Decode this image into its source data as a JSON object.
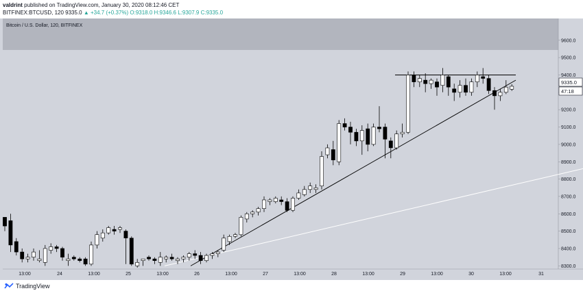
{
  "header": {
    "author": "valdrint",
    "published_text": "published on TradingView.com, January 30, 2020 08:12:46 CET",
    "symbol": "BITFINEX:BTCUSD, 120",
    "last": "9335.0",
    "change": "▲ +34.7 (+0.37%)",
    "ohlc": "O:9318.0 H:9346.6 L:9307.9 C:9335.0"
  },
  "chart_title": "Bitcoin / U.S. Dollar, 120, BITFINEX",
  "footer": {
    "brand": "TradingView"
  },
  "price_badge": "9335.0",
  "timer_badge": "47:18",
  "colors": {
    "background": "#d1d4dc",
    "band": "#b2b5be",
    "candle_up": "#ffffff",
    "candle_down": "#000000"
  },
  "chart_data": {
    "type": "candlestick",
    "title": "Bitcoin / U.S. Dollar, 120, BITFINEX",
    "x_ticks": [
      "13:00",
      "24",
      "13:00",
      "25",
      "13:00",
      "26",
      "13:00",
      "27",
      "13:00",
      "28",
      "13:00",
      "29",
      "13:00",
      "30",
      "13:00",
      "31"
    ],
    "y_ticks": [
      8300,
      8400,
      8500,
      8600,
      8700,
      8800,
      8900,
      9000,
      9100,
      9200,
      9300,
      9400,
      9500,
      9600
    ],
    "y_range": [
      8260,
      9720
    ],
    "resistance_level": 9400,
    "candles": [
      [
        8580,
        8580,
        8500,
        8530
      ],
      [
        8560,
        8600,
        8380,
        8420
      ],
      [
        8440,
        8460,
        8360,
        8380
      ],
      [
        8380,
        8400,
        8320,
        8340
      ],
      [
        8340,
        8370,
        8320,
        8350
      ],
      [
        8350,
        8400,
        8330,
        8380
      ],
      [
        8330,
        8390,
        8320,
        8340
      ],
      [
        8320,
        8420,
        8300,
        8400
      ],
      [
        8390,
        8430,
        8370,
        8410
      ],
      [
        8410,
        8420,
        8380,
        8400
      ],
      [
        8400,
        8410,
        8330,
        8350
      ],
      [
        8330,
        8370,
        8300,
        8340
      ],
      [
        8350,
        8360,
        8330,
        8340
      ],
      [
        8340,
        8350,
        8320,
        8330
      ],
      [
        8340,
        8350,
        8300,
        8310
      ],
      [
        8310,
        8440,
        8300,
        8420
      ],
      [
        8420,
        8500,
        8400,
        8480
      ],
      [
        8460,
        8510,
        8440,
        8490
      ],
      [
        8490,
        8530,
        8480,
        8520
      ],
      [
        8510,
        8530,
        8480,
        8500
      ],
      [
        8510,
        8530,
        8490,
        8520
      ],
      [
        8500,
        8510,
        8310,
        8460
      ],
      [
        8460,
        8470,
        8300,
        8310
      ],
      [
        8300,
        8340,
        8290,
        8320
      ],
      [
        8330,
        8340,
        8300,
        8340
      ],
      [
        8350,
        8360,
        8330,
        8340
      ],
      [
        8340,
        8350,
        8310,
        8330
      ],
      [
        8320,
        8380,
        8300,
        8350
      ],
      [
        8340,
        8360,
        8320,
        8350
      ],
      [
        8350,
        8370,
        8330,
        8340
      ],
      [
        8330,
        8350,
        8310,
        8340
      ],
      [
        8340,
        8360,
        8320,
        8350
      ],
      [
        8350,
        8380,
        8330,
        8370
      ],
      [
        8370,
        8390,
        8340,
        8360
      ],
      [
        8360,
        8380,
        8310,
        8330
      ],
      [
        8330,
        8370,
        8320,
        8360
      ],
      [
        8360,
        8380,
        8340,
        8370
      ],
      [
        8370,
        8390,
        8350,
        8380
      ],
      [
        8390,
        8480,
        8380,
        8460
      ],
      [
        8440,
        8480,
        8420,
        8470
      ],
      [
        8470,
        8490,
        8460,
        8480
      ],
      [
        8480,
        8590,
        8470,
        8580
      ],
      [
        8570,
        8610,
        8550,
        8600
      ],
      [
        8600,
        8620,
        8580,
        8610
      ],
      [
        8610,
        8640,
        8590,
        8630
      ],
      [
        8630,
        8700,
        8610,
        8680
      ],
      [
        8670,
        8690,
        8650,
        8680
      ],
      [
        8670,
        8700,
        8660,
        8690
      ],
      [
        8680,
        8700,
        8650,
        8670
      ],
      [
        8670,
        8690,
        8610,
        8620
      ],
      [
        8620,
        8700,
        8610,
        8690
      ],
      [
        8690,
        8740,
        8680,
        8720
      ],
      [
        8710,
        8760,
        8700,
        8740
      ],
      [
        8740,
        8780,
        8720,
        8760
      ],
      [
        8740,
        8770,
        8720,
        8750
      ],
      [
        8760,
        8960,
        8740,
        8930
      ],
      [
        8940,
        9000,
        8920,
        8980
      ],
      [
        8970,
        9020,
        8880,
        8910
      ],
      [
        8900,
        9140,
        8880,
        9120
      ],
      [
        9120,
        9150,
        9080,
        9100
      ],
      [
        9100,
        9130,
        9000,
        9070
      ],
      [
        9070,
        9090,
        8990,
        9020
      ],
      [
        9020,
        9110,
        8940,
        9080
      ],
      [
        9090,
        9120,
        8960,
        9000
      ],
      [
        9000,
        9120,
        8990,
        9100
      ],
      [
        9100,
        9220,
        9070,
        9090
      ],
      [
        9100,
        9120,
        8920,
        9030
      ],
      [
        9020,
        9040,
        8920,
        8980
      ],
      [
        8980,
        9080,
        8970,
        9060
      ],
      [
        9060,
        9120,
        9040,
        9070
      ],
      [
        9070,
        9420,
        9060,
        9400
      ],
      [
        9400,
        9420,
        9330,
        9360
      ],
      [
        9360,
        9400,
        9330,
        9380
      ],
      [
        9370,
        9410,
        9300,
        9350
      ],
      [
        9350,
        9380,
        9320,
        9370
      ],
      [
        9360,
        9380,
        9280,
        9330
      ],
      [
        9340,
        9440,
        9300,
        9400
      ],
      [
        9390,
        9400,
        9280,
        9330
      ],
      [
        9320,
        9350,
        9250,
        9300
      ],
      [
        9300,
        9370,
        9270,
        9340
      ],
      [
        9340,
        9380,
        9280,
        9300
      ],
      [
        9300,
        9380,
        9280,
        9360
      ],
      [
        9360,
        9420,
        9330,
        9400
      ],
      [
        9390,
        9440,
        9350,
        9380
      ],
      [
        9380,
        9400,
        9290,
        9310
      ],
      [
        9310,
        9330,
        9200,
        9280
      ],
      [
        9280,
        9320,
        9250,
        9300
      ],
      [
        9300,
        9370,
        9290,
        9330
      ],
      [
        9318,
        9346.6,
        9307.9,
        9335
      ]
    ],
    "lines": [
      {
        "name": "ascending trendline",
        "from": [
          "26",
          8300
        ],
        "to": [
          "30 13:00",
          9370
        ]
      },
      {
        "name": "long trendline",
        "from": [
          "25 13:00",
          8300
        ],
        "to": [
          "31 13:00",
          8860
        ]
      },
      {
        "name": "resistance",
        "from": [
          "29",
          9400
        ],
        "to": [
          "30 13:00",
          9400
        ]
      }
    ]
  }
}
